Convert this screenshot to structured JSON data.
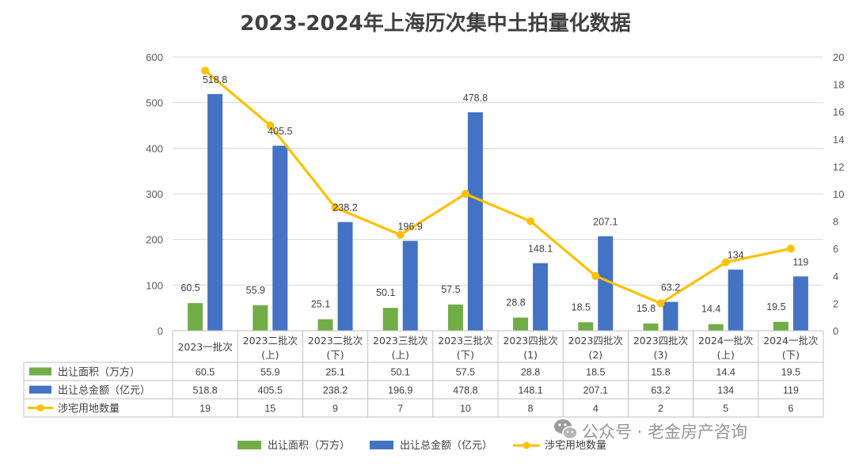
{
  "chart_data": {
    "type": "bar",
    "title": "2023-2024年上海历次集中土拍量化数据",
    "categories": [
      [
        "2023一批次"
      ],
      [
        "2023二批次",
        "(上)"
      ],
      [
        "2023二批次",
        "(下)"
      ],
      [
        "2023三批次",
        "(上)"
      ],
      [
        "2023三批次",
        "(下)"
      ],
      [
        "2023四批次",
        "(1)"
      ],
      [
        "2023四批次",
        "(2)"
      ],
      [
        "2023四批次",
        "(3)"
      ],
      [
        "2024一批次",
        "(上)"
      ],
      [
        "2024一批次",
        "(下)"
      ]
    ],
    "series": [
      {
        "name": "出让面积（万方）",
        "type": "bar",
        "axis": "left",
        "color": "#70AD47",
        "values": [
          60.5,
          55.9,
          25.1,
          50.1,
          57.5,
          28.8,
          18.5,
          15.8,
          14.4,
          19.5
        ]
      },
      {
        "name": "出让总金额（亿元）",
        "type": "bar",
        "axis": "left",
        "color": "#4472C4",
        "values": [
          518.8,
          405.5,
          238.2,
          196.9,
          478.8,
          148.1,
          207.1,
          63.2,
          134,
          119
        ]
      },
      {
        "name": "涉宅用地数量",
        "type": "line",
        "axis": "right",
        "color": "#FFC000",
        "values": [
          19,
          15,
          9,
          7,
          10,
          8,
          4,
          2,
          5,
          6
        ]
      }
    ],
    "y_left": {
      "min": 0,
      "max": 600,
      "step": 100,
      "ticks": [
        "0",
        "100",
        "200",
        "300",
        "400",
        "500",
        "600"
      ]
    },
    "y_right": {
      "min": 0,
      "max": 20,
      "step": 2,
      "ticks": [
        "0",
        "2",
        "4",
        "6",
        "8",
        "10",
        "12",
        "14",
        "16",
        "18",
        "20"
      ]
    },
    "grid": true,
    "legend_position": "bottom",
    "data_table": true
  },
  "watermark": "公众号 · 老金房产咨询",
  "watermark_icon": "wechat-icon"
}
